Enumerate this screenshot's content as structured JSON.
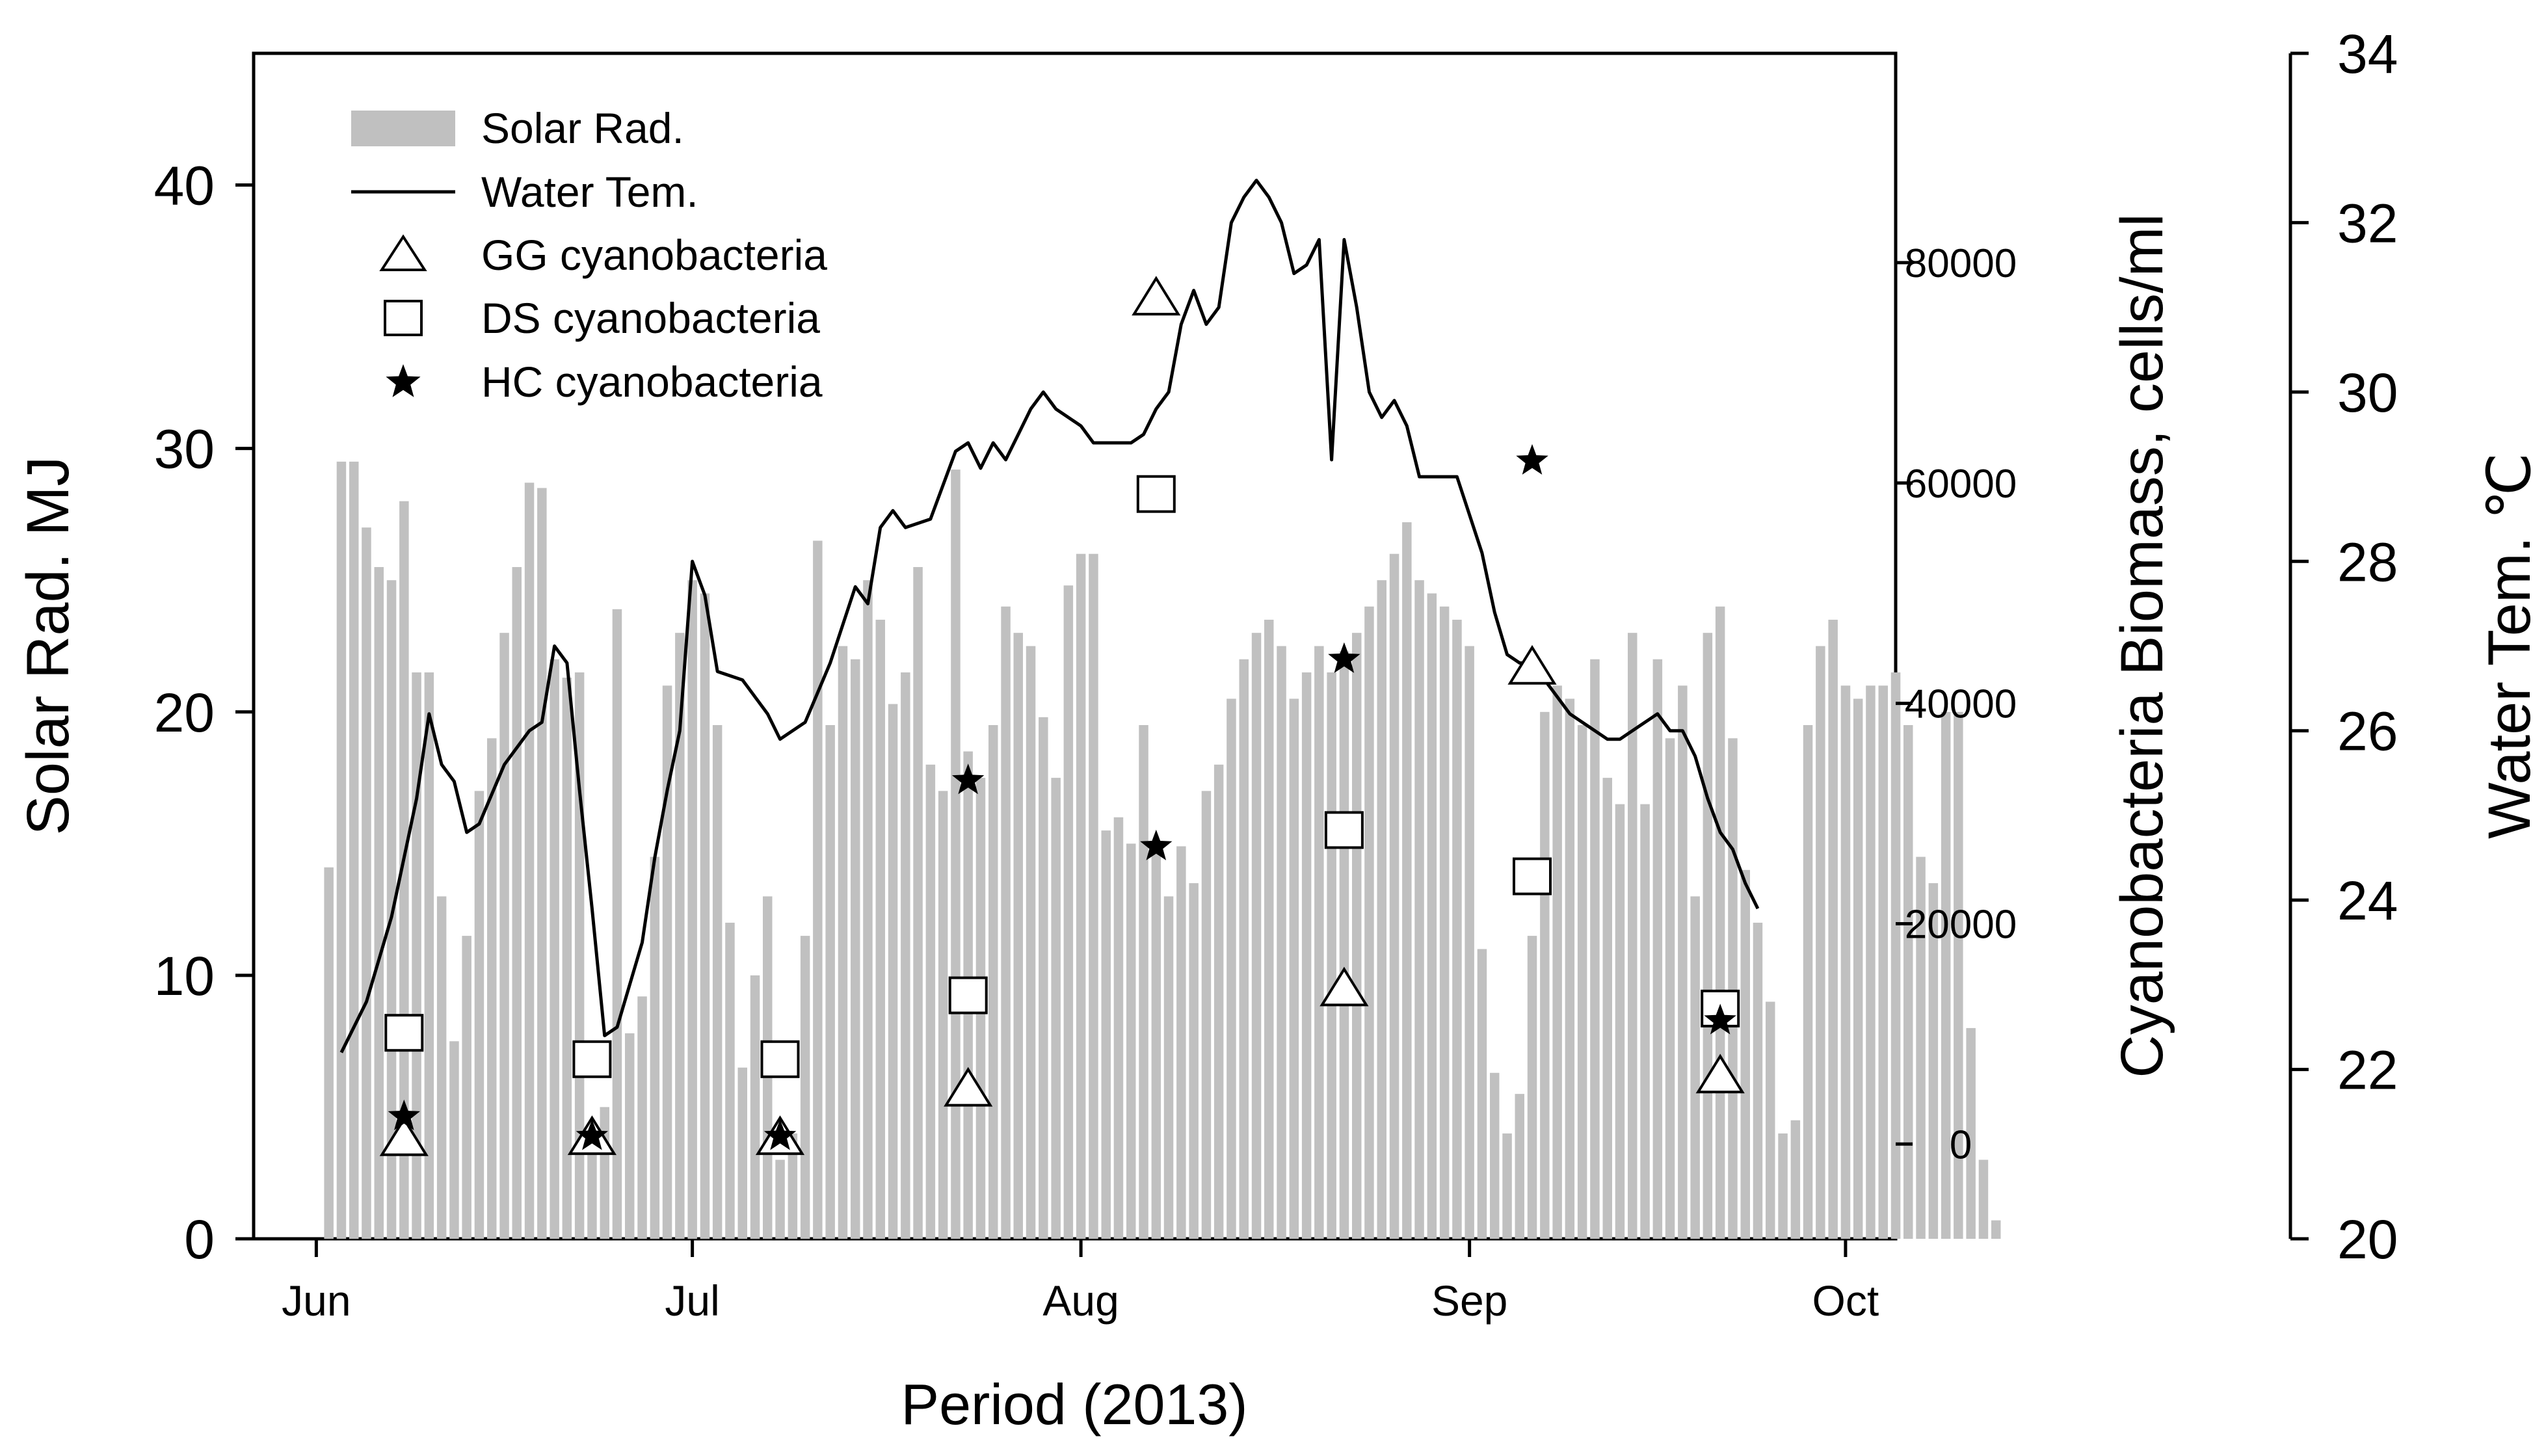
{
  "chart_data": {
    "type": "bar",
    "xlabel": "Period (2013)",
    "x_ticks": [
      "Jun",
      "Jul",
      "Aug",
      "Sep",
      "Oct"
    ],
    "x_tick_days": [
      0,
      30,
      61,
      92,
      122
    ],
    "x_range_days": [
      -5,
      126
    ],
    "left_axis": {
      "label": "Solar Rad. MJ",
      "range": [
        0,
        45
      ],
      "ticks": [
        0,
        10,
        20,
        30,
        40
      ]
    },
    "right_axis_1": {
      "label": "Cyanobacteria Biomass, cells/ml",
      "range": [
        -8600,
        99000
      ],
      "ticks": [
        0,
        20000,
        40000,
        60000,
        80000
      ],
      "tick_labels": [
        "0",
        "20000",
        "40000",
        "60000",
        "80000"
      ]
    },
    "right_axis_2": {
      "label": "Water Tem. ℃",
      "range": [
        20,
        34
      ],
      "ticks": [
        20,
        22,
        24,
        26,
        28,
        30,
        32,
        34
      ]
    },
    "legend": {
      "position": "top-left",
      "entries": [
        "Solar Rad.",
        "Water Tem.",
        "GG cyanobacteria",
        "DS cyanobacteria",
        "HC cyanobacteria"
      ]
    },
    "colors": {
      "bars": "#c0c0c0",
      "line": "#000000"
    },
    "solar_rad": [
      14.1,
      29.5,
      29.5,
      27.0,
      25.5,
      25.0,
      28.0,
      21.5,
      21.5,
      13.0,
      7.5,
      11.5,
      17.0,
      19.0,
      23.0,
      25.5,
      28.7,
      28.5,
      22.0,
      21.3,
      21.5,
      3.5,
      5.0,
      23.9,
      7.8,
      9.2,
      14.5,
      21.0,
      23.0,
      25.0,
      24.5,
      19.5,
      12.0,
      6.5,
      10.0,
      13.0,
      3.0,
      4.0,
      11.5,
      26.5,
      19.5,
      22.5,
      22.0,
      25.0,
      23.5,
      20.3,
      21.5,
      25.5,
      18.0,
      17.0,
      29.2,
      18.5,
      17.5,
      19.5,
      24.0,
      23.0,
      22.5,
      19.8,
      17.5,
      24.8,
      26.0,
      26.0,
      15.5,
      16.0,
      15.0,
      19.5,
      15.0,
      13.0,
      14.9,
      13.5,
      17.0,
      18.0,
      20.5,
      22.0,
      23.0,
      23.5,
      22.5,
      20.5,
      21.5,
      22.5,
      21.5,
      22.3,
      23.0,
      24.0,
      25.0,
      26.0,
      27.2,
      25.0,
      24.5,
      24.0,
      23.5,
      22.5,
      11.0,
      6.3,
      4.0,
      5.5,
      11.5,
      20.0,
      21.0,
      20.5,
      19.5,
      22.0,
      17.5,
      16.5,
      23.0,
      16.5,
      22.0,
      19.0,
      21.0,
      13.0,
      23.0,
      24.0,
      19.0,
      14.0,
      12.0,
      9.0,
      4.0,
      4.5,
      19.5,
      22.5,
      23.5,
      21.0,
      20.5,
      21.0,
      21.0,
      21.5,
      19.5,
      14.5,
      13.5,
      20.0,
      20.0,
      8.0,
      3.0,
      0.7
    ],
    "water_temp": [
      [
        2,
        22.2
      ],
      [
        4,
        22.8
      ],
      [
        6,
        23.8
      ],
      [
        8,
        25.2
      ],
      [
        9,
        26.2
      ],
      [
        10,
        25.6
      ],
      [
        11,
        25.4
      ],
      [
        12,
        24.8
      ],
      [
        13,
        24.9
      ],
      [
        15,
        25.6
      ],
      [
        17,
        26.0
      ],
      [
        18,
        26.1
      ],
      [
        19,
        27.0
      ],
      [
        20,
        26.8
      ],
      [
        21,
        25.3
      ],
      [
        22,
        23.9
      ],
      [
        23,
        22.4
      ],
      [
        24,
        22.5
      ],
      [
        26,
        23.5
      ],
      [
        27,
        24.5
      ],
      [
        28,
        25.3
      ],
      [
        29,
        26.0
      ],
      [
        30,
        28.0
      ],
      [
        31,
        27.6
      ],
      [
        32,
        26.7
      ],
      [
        34,
        26.6
      ],
      [
        36,
        26.2
      ],
      [
        37,
        25.9
      ],
      [
        39,
        26.1
      ],
      [
        41,
        26.8
      ],
      [
        43,
        27.7
      ],
      [
        44,
        27.5
      ],
      [
        45,
        28.4
      ],
      [
        46,
        28.6
      ],
      [
        47,
        28.4
      ],
      [
        49,
        28.5
      ],
      [
        51,
        29.3
      ],
      [
        52,
        29.4
      ],
      [
        53,
        29.1
      ],
      [
        54,
        29.4
      ],
      [
        55,
        29.2
      ],
      [
        56,
        29.5
      ],
      [
        57,
        29.8
      ],
      [
        58,
        30.0
      ],
      [
        59,
        29.8
      ],
      [
        61,
        29.6
      ],
      [
        62,
        29.4
      ],
      [
        63,
        29.4
      ],
      [
        65,
        29.4
      ],
      [
        66,
        29.5
      ],
      [
        67,
        29.8
      ],
      [
        68,
        30.0
      ],
      [
        69,
        30.8
      ],
      [
        70,
        31.2
      ],
      [
        71,
        30.8
      ],
      [
        72,
        31.0
      ],
      [
        73,
        32.0
      ],
      [
        74,
        32.3
      ],
      [
        75,
        32.5
      ],
      [
        76,
        32.3
      ],
      [
        77,
        32.0
      ],
      [
        78,
        31.4
      ],
      [
        79,
        31.5
      ],
      [
        80,
        31.8
      ],
      [
        81,
        29.2
      ],
      [
        82,
        31.8
      ],
      [
        83,
        31.0
      ],
      [
        84,
        30.0
      ],
      [
        85,
        29.7
      ],
      [
        86,
        29.9
      ],
      [
        87,
        29.6
      ],
      [
        88,
        29.0
      ],
      [
        90,
        29.0
      ],
      [
        91,
        29.0
      ],
      [
        93,
        28.1
      ],
      [
        94,
        27.4
      ],
      [
        95,
        26.9
      ],
      [
        96,
        26.8
      ],
      [
        97,
        26.8
      ],
      [
        98,
        26.6
      ],
      [
        99,
        26.4
      ],
      [
        100,
        26.2
      ],
      [
        102,
        26.0
      ],
      [
        103,
        25.9
      ],
      [
        104,
        25.9
      ],
      [
        105,
        26.0
      ],
      [
        106,
        26.1
      ],
      [
        107,
        26.2
      ],
      [
        108,
        26.0
      ],
      [
        109,
        26.0
      ],
      [
        110,
        25.7
      ],
      [
        111,
        25.2
      ],
      [
        112,
        24.8
      ],
      [
        113,
        24.6
      ],
      [
        114,
        24.2
      ],
      [
        115,
        23.9
      ]
    ],
    "gg_cyanobacteria": [
      [
        7,
        500
      ],
      [
        22,
        600
      ],
      [
        37,
        600
      ],
      [
        52,
        5000
      ],
      [
        67,
        76800
      ],
      [
        82,
        14100
      ],
      [
        97,
        43300
      ],
      [
        112,
        6200
      ]
    ],
    "ds_cyanobacteria": [
      [
        7,
        10100
      ],
      [
        22,
        7700
      ],
      [
        37,
        7700
      ],
      [
        52,
        13500
      ],
      [
        67,
        59000
      ],
      [
        82,
        28500
      ],
      [
        97,
        24300
      ],
      [
        112,
        12300
      ]
    ],
    "hc_cyanobacteria": [
      [
        7,
        2500
      ],
      [
        22,
        700
      ],
      [
        37,
        700
      ],
      [
        52,
        33000
      ],
      [
        67,
        27000
      ],
      [
        82,
        44000
      ],
      [
        97,
        62000
      ],
      [
        112,
        11200
      ]
    ]
  }
}
